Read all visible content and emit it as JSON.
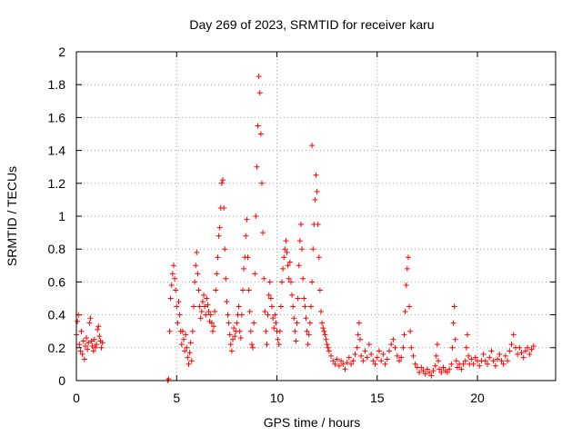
{
  "chart_data": {
    "type": "scatter",
    "title": "Day 269 of 2023, SRMTID for receiver karu",
    "xlabel": "GPS time / hours",
    "ylabel": "SRMTID / TECUs",
    "xlim": [
      0,
      23.9
    ],
    "ylim": [
      0,
      2
    ],
    "xticks": [
      0,
      5,
      10,
      15,
      20
    ],
    "xtick_labels": [
      "0",
      "5",
      "10",
      "15",
      "20"
    ],
    "yticks": [
      0,
      0.2,
      0.4,
      0.6,
      0.8,
      1,
      1.2,
      1.4,
      1.6,
      1.8,
      2
    ],
    "ytick_labels": [
      "0",
      "0.2",
      "0.4",
      "0.6",
      "0.8",
      "1",
      "1.2",
      "1.4",
      "1.6",
      "1.8",
      "2"
    ],
    "grid": true,
    "marker": "+",
    "color": "#ff0000",
    "series": [
      {
        "name": "SRMTID",
        "points": [
          [
            0.0,
            0.28
          ],
          [
            0.05,
            0.36
          ],
          [
            0.1,
            0.4
          ],
          [
            0.15,
            0.22
          ],
          [
            0.2,
            0.18
          ],
          [
            0.25,
            0.3
          ],
          [
            0.3,
            0.16
          ],
          [
            0.35,
            0.24
          ],
          [
            0.4,
            0.13
          ],
          [
            0.45,
            0.21
          ],
          [
            0.5,
            0.26
          ],
          [
            0.55,
            0.19
          ],
          [
            0.6,
            0.23
          ],
          [
            0.65,
            0.35
          ],
          [
            0.7,
            0.38
          ],
          [
            0.75,
            0.24
          ],
          [
            0.8,
            0.21
          ],
          [
            0.85,
            0.18
          ],
          [
            0.9,
            0.25
          ],
          [
            0.95,
            0.2
          ],
          [
            1.0,
            0.22
          ],
          [
            1.05,
            0.31
          ],
          [
            1.1,
            0.33
          ],
          [
            1.15,
            0.27
          ],
          [
            1.2,
            0.24
          ],
          [
            1.25,
            0.2
          ],
          [
            1.3,
            0.23
          ],
          [
            4.55,
            0.0
          ],
          [
            4.6,
            0.01
          ],
          [
            4.65,
            0.3
          ],
          [
            4.7,
            0.5
          ],
          [
            4.75,
            0.58
          ],
          [
            4.8,
            0.65
          ],
          [
            4.85,
            0.7
          ],
          [
            4.9,
            0.62
          ],
          [
            4.95,
            0.55
          ],
          [
            5.0,
            0.45
          ],
          [
            5.05,
            0.35
          ],
          [
            5.1,
            0.48
          ],
          [
            5.15,
            0.4
          ],
          [
            5.2,
            0.3
          ],
          [
            5.25,
            0.22
          ],
          [
            5.3,
            0.3
          ],
          [
            5.35,
            0.25
          ],
          [
            5.4,
            0.18
          ],
          [
            5.45,
            0.28
          ],
          [
            5.5,
            0.2
          ],
          [
            5.55,
            0.14
          ],
          [
            5.6,
            0.1
          ],
          [
            5.65,
            0.17
          ],
          [
            5.7,
            0.23
          ],
          [
            5.75,
            0.12
          ],
          [
            5.8,
            0.3
          ],
          [
            5.85,
            0.45
          ],
          [
            5.9,
            0.6
          ],
          [
            5.95,
            0.7
          ],
          [
            6.0,
            0.78
          ],
          [
            6.05,
            0.65
          ],
          [
            6.1,
            0.55
          ],
          [
            6.15,
            0.45
          ],
          [
            6.2,
            0.38
          ],
          [
            6.25,
            0.42
          ],
          [
            6.3,
            0.48
          ],
          [
            6.35,
            0.52
          ],
          [
            6.4,
            0.45
          ],
          [
            6.45,
            0.4
          ],
          [
            6.5,
            0.5
          ],
          [
            6.55,
            0.46
          ],
          [
            6.6,
            0.42
          ],
          [
            6.65,
            0.36
          ],
          [
            6.7,
            0.4
          ],
          [
            6.75,
            0.35
          ],
          [
            6.8,
            0.3
          ],
          [
            6.85,
            0.33
          ],
          [
            6.9,
            0.42
          ],
          [
            6.95,
            0.55
          ],
          [
            7.0,
            0.65
          ],
          [
            7.05,
            0.75
          ],
          [
            7.1,
            0.88
          ],
          [
            7.15,
            0.93
          ],
          [
            7.2,
            1.05
          ],
          [
            7.25,
            1.2
          ],
          [
            7.3,
            1.22
          ],
          [
            7.35,
            1.05
          ],
          [
            7.4,
            0.8
          ],
          [
            7.45,
            0.62
          ],
          [
            7.5,
            0.48
          ],
          [
            7.55,
            0.4
          ],
          [
            7.6,
            0.35
          ],
          [
            7.65,
            0.28
          ],
          [
            7.7,
            0.22
          ],
          [
            7.75,
            0.18
          ],
          [
            7.8,
            0.25
          ],
          [
            7.85,
            0.32
          ],
          [
            7.9,
            0.27
          ],
          [
            7.95,
            0.3
          ],
          [
            8.0,
            0.35
          ],
          [
            8.05,
            0.4
          ],
          [
            8.1,
            0.45
          ],
          [
            8.15,
            0.3
          ],
          [
            8.2,
            0.26
          ],
          [
            8.25,
            0.4
          ],
          [
            8.3,
            0.55
          ],
          [
            8.35,
            0.68
          ],
          [
            8.4,
            0.75
          ],
          [
            8.45,
            0.88
          ],
          [
            8.5,
            0.98
          ],
          [
            8.55,
            0.75
          ],
          [
            8.6,
            0.55
          ],
          [
            8.65,
            0.42
          ],
          [
            8.7,
            0.3
          ],
          [
            8.75,
            0.22
          ],
          [
            8.8,
            0.2
          ],
          [
            8.85,
            0.35
          ],
          [
            8.9,
            0.65
          ],
          [
            8.95,
            1.0
          ],
          [
            9.0,
            1.3
          ],
          [
            9.05,
            1.55
          ],
          [
            9.1,
            1.85
          ],
          [
            9.15,
            1.75
          ],
          [
            9.2,
            1.5
          ],
          [
            9.25,
            1.2
          ],
          [
            9.3,
            0.9
          ],
          [
            9.35,
            0.62
          ],
          [
            9.4,
            0.42
          ],
          [
            9.45,
            0.3
          ],
          [
            9.5,
            0.22
          ],
          [
            9.55,
            0.4
          ],
          [
            9.6,
            0.52
          ],
          [
            9.65,
            0.6
          ],
          [
            9.7,
            0.5
          ],
          [
            9.75,
            0.45
          ],
          [
            9.8,
            0.38
          ],
          [
            9.85,
            0.32
          ],
          [
            9.9,
            0.4
          ],
          [
            9.95,
            0.35
          ],
          [
            10.0,
            0.3
          ],
          [
            10.05,
            0.25
          ],
          [
            10.1,
            0.22
          ],
          [
            10.15,
            0.3
          ],
          [
            10.2,
            0.45
          ],
          [
            10.25,
            0.6
          ],
          [
            10.3,
            0.68
          ],
          [
            10.35,
            0.75
          ],
          [
            10.4,
            0.8
          ],
          [
            10.45,
            0.85
          ],
          [
            10.5,
            0.78
          ],
          [
            10.55,
            0.7
          ],
          [
            10.6,
            0.62
          ],
          [
            10.65,
            0.72
          ],
          [
            10.7,
            0.6
          ],
          [
            10.75,
            0.52
          ],
          [
            10.8,
            0.45
          ],
          [
            10.85,
            0.38
          ],
          [
            10.9,
            0.3
          ],
          [
            10.95,
            0.24
          ],
          [
            11.0,
            0.35
          ],
          [
            11.05,
            0.5
          ],
          [
            11.1,
            0.7
          ],
          [
            11.15,
            0.85
          ],
          [
            11.2,
            0.95
          ],
          [
            11.25,
            0.8
          ],
          [
            11.3,
            0.62
          ],
          [
            11.35,
            0.5
          ],
          [
            11.4,
            0.45
          ],
          [
            11.45,
            0.38
          ],
          [
            11.5,
            0.3
          ],
          [
            11.55,
            0.22
          ],
          [
            11.6,
            0.28
          ],
          [
            11.65,
            0.35
          ],
          [
            11.7,
            0.45
          ],
          [
            11.75,
            0.6
          ],
          [
            11.8,
            0.8
          ],
          [
            11.85,
            0.95
          ],
          [
            11.9,
            1.1
          ],
          [
            11.95,
            1.25
          ],
          [
            12.0,
            1.15
          ],
          [
            12.05,
            0.95
          ],
          [
            12.1,
            0.75
          ],
          [
            12.15,
            0.55
          ],
          [
            12.2,
            0.42
          ],
          [
            12.25,
            0.35
          ],
          [
            12.3,
            0.32
          ],
          [
            12.35,
            0.3
          ],
          [
            12.4,
            0.28
          ],
          [
            12.45,
            0.25
          ],
          [
            12.5,
            0.22
          ],
          [
            12.55,
            0.2
          ],
          [
            11.75,
            1.43
          ],
          [
            12.6,
            0.18
          ],
          [
            12.7,
            0.15
          ],
          [
            12.8,
            0.12
          ],
          [
            12.9,
            0.1
          ],
          [
            13.0,
            0.13
          ],
          [
            13.1,
            0.09
          ],
          [
            13.2,
            0.12
          ],
          [
            13.3,
            0.1
          ],
          [
            13.4,
            0.07
          ],
          [
            13.5,
            0.11
          ],
          [
            13.6,
            0.14
          ],
          [
            13.7,
            0.1
          ],
          [
            13.8,
            0.12
          ],
          [
            13.9,
            0.16
          ],
          [
            14.0,
            0.2
          ],
          [
            14.05,
            0.28
          ],
          [
            14.1,
            0.35
          ],
          [
            14.15,
            0.25
          ],
          [
            14.2,
            0.15
          ],
          [
            14.3,
            0.12
          ],
          [
            14.4,
            0.18
          ],
          [
            14.5,
            0.14
          ],
          [
            14.6,
            0.22
          ],
          [
            14.7,
            0.16
          ],
          [
            14.8,
            0.12
          ],
          [
            14.9,
            0.1
          ],
          [
            15.0,
            0.14
          ],
          [
            15.1,
            0.18
          ],
          [
            15.2,
            0.12
          ],
          [
            15.3,
            0.16
          ],
          [
            15.4,
            0.1
          ],
          [
            15.5,
            0.13
          ],
          [
            15.6,
            0.18
          ],
          [
            15.7,
            0.22
          ],
          [
            15.8,
            0.25
          ],
          [
            15.9,
            0.2
          ],
          [
            16.0,
            0.15
          ],
          [
            16.1,
            0.12
          ],
          [
            16.2,
            0.14
          ],
          [
            16.3,
            0.2
          ],
          [
            16.35,
            0.28
          ],
          [
            16.4,
            0.42
          ],
          [
            16.45,
            0.58
          ],
          [
            16.5,
            0.68
          ],
          [
            16.55,
            0.75
          ],
          [
            16.6,
            0.45
          ],
          [
            16.65,
            0.3
          ],
          [
            16.7,
            0.2
          ],
          [
            16.8,
            0.15
          ],
          [
            16.9,
            0.1
          ],
          [
            17.0,
            0.08
          ],
          [
            17.1,
            0.05
          ],
          [
            17.2,
            0.08
          ],
          [
            17.3,
            0.06
          ],
          [
            17.4,
            0.04
          ],
          [
            17.5,
            0.07
          ],
          [
            17.6,
            0.05
          ],
          [
            17.7,
            0.03
          ],
          [
            17.8,
            0.06
          ],
          [
            17.9,
            0.09
          ],
          [
            17.95,
            0.15
          ],
          [
            18.0,
            0.22
          ],
          [
            18.05,
            0.12
          ],
          [
            18.1,
            0.07
          ],
          [
            18.2,
            0.05
          ],
          [
            18.3,
            0.08
          ],
          [
            18.4,
            0.06
          ],
          [
            18.5,
            0.05
          ],
          [
            18.6,
            0.07
          ],
          [
            18.7,
            0.1
          ],
          [
            18.75,
            0.2
          ],
          [
            18.8,
            0.35
          ],
          [
            18.85,
            0.45
          ],
          [
            18.9,
            0.25
          ],
          [
            18.95,
            0.12
          ],
          [
            19.0,
            0.08
          ],
          [
            19.1,
            0.1
          ],
          [
            19.2,
            0.07
          ],
          [
            19.3,
            0.1
          ],
          [
            19.4,
            0.12
          ],
          [
            19.45,
            0.2
          ],
          [
            19.5,
            0.28
          ],
          [
            19.55,
            0.15
          ],
          [
            19.6,
            0.1
          ],
          [
            19.7,
            0.13
          ],
          [
            19.8,
            0.1
          ],
          [
            19.9,
            0.14
          ],
          [
            20.0,
            0.12
          ],
          [
            20.1,
            0.09
          ],
          [
            20.2,
            0.12
          ],
          [
            20.3,
            0.16
          ],
          [
            20.4,
            0.12
          ],
          [
            20.5,
            0.1
          ],
          [
            20.6,
            0.14
          ],
          [
            20.7,
            0.18
          ],
          [
            20.8,
            0.12
          ],
          [
            20.9,
            0.09
          ],
          [
            21.0,
            0.13
          ],
          [
            21.1,
            0.16
          ],
          [
            21.2,
            0.12
          ],
          [
            21.3,
            0.1
          ],
          [
            21.4,
            0.15
          ],
          [
            21.5,
            0.12
          ],
          [
            21.6,
            0.18
          ],
          [
            21.7,
            0.22
          ],
          [
            21.8,
            0.28
          ],
          [
            21.9,
            0.2
          ],
          [
            22.0,
            0.16
          ],
          [
            22.1,
            0.2
          ],
          [
            22.2,
            0.17
          ],
          [
            22.3,
            0.14
          ],
          [
            22.4,
            0.18
          ],
          [
            22.5,
            0.2
          ],
          [
            22.6,
            0.16
          ],
          [
            22.7,
            0.19
          ],
          [
            22.8,
            0.21
          ]
        ]
      }
    ]
  }
}
